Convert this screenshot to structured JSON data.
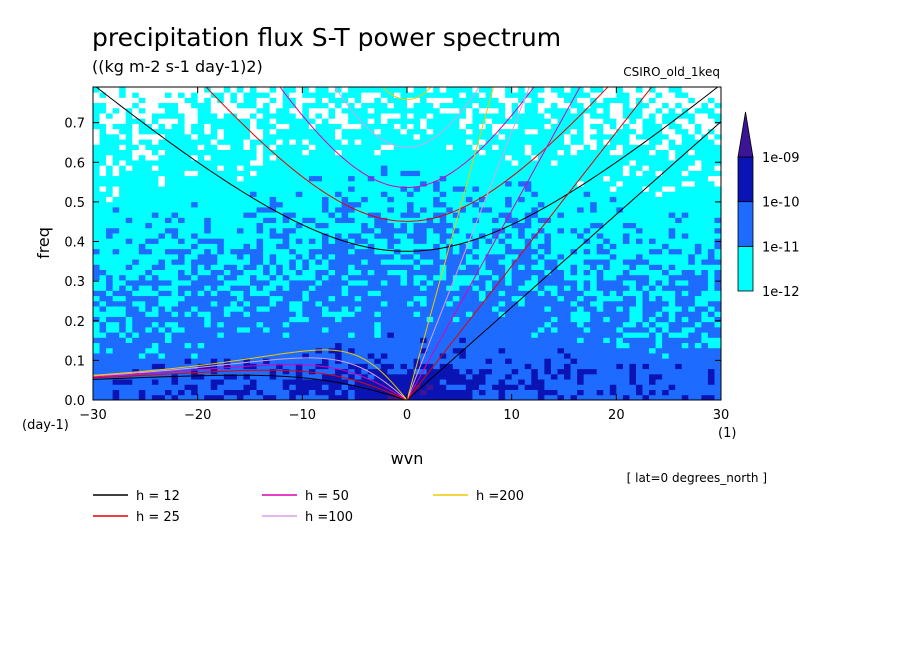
{
  "chart_data": {
    "type": "heatmap",
    "title": "precipitation flux S-T power spectrum",
    "subtitle": "((kg m-2 s-1 day-1)2)",
    "model_label": "CSIRO_old_1keq",
    "xlabel": "wvn",
    "ylabel": "freq",
    "x_unit": "(1)",
    "y_unit": "(day-1)",
    "xlim": [
      -30,
      30
    ],
    "ylim": [
      0,
      0.79
    ],
    "x_ticks": [
      -30,
      -20,
      -10,
      0,
      10,
      20,
      30
    ],
    "y_ticks": [
      0.0,
      0.1,
      0.2,
      0.3,
      0.4,
      0.5,
      0.6,
      0.7
    ],
    "x_tick_labels": [
      "−30",
      "−20",
      "−10",
      "0",
      "10",
      "20",
      "30"
    ],
    "y_tick_labels": [
      "0.0",
      "0.1",
      "0.2",
      "0.3",
      "0.4",
      "0.5",
      "0.6",
      "0.7"
    ],
    "colorbar": {
      "levels": [
        "1e-12",
        "1e-11",
        "1e-10",
        "1e-09"
      ],
      "colors": [
        "#00ffff",
        "#1e6bff",
        "#0a14b4",
        "#3c1496"
      ],
      "below_color": "#ffffff"
    },
    "annotation": "[ lat=0 degrees_north ]",
    "dispersion_curves": [
      {
        "name": "h = 12",
        "h": 12,
        "color": "#000000"
      },
      {
        "name": "h = 25",
        "h": 25,
        "color": "#e60000"
      },
      {
        "name": "h = 50",
        "h": 50,
        "color": "#dc00b4"
      },
      {
        "name": "h =100",
        "h": 100,
        "color": "#dca0e6"
      },
      {
        "name": "h =200",
        "h": 200,
        "color": "#f0c800"
      }
    ]
  }
}
